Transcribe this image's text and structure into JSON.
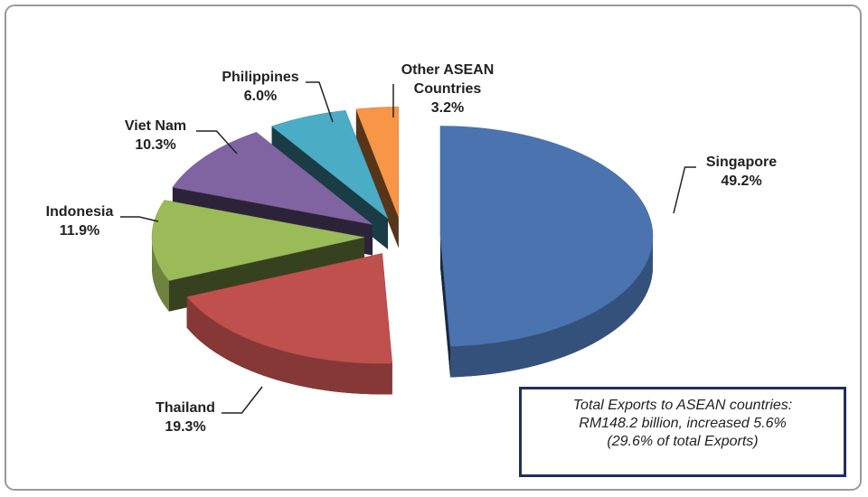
{
  "chart_data": {
    "type": "pie3d",
    "categories": [
      "Singapore",
      "Thailand",
      "Indonesia",
      "Viet Nam",
      "Philippines",
      "Other ASEAN Countries"
    ],
    "values": [
      49.2,
      19.3,
      11.9,
      10.3,
      6.0,
      3.2
    ],
    "value_labels": [
      "49.2%",
      "19.3%",
      "11.9%",
      "10.3%",
      "6.0%",
      "3.2%"
    ],
    "colors": [
      "#4a73b0",
      "#c0504d",
      "#9bbb59",
      "#8064a2",
      "#4bacc6",
      "#f79646"
    ],
    "annotation": [
      "Total Exports to ASEAN countries:",
      "RM148.2 billion, increased 5.6%",
      "(29.6% of total Exports)"
    ]
  }
}
